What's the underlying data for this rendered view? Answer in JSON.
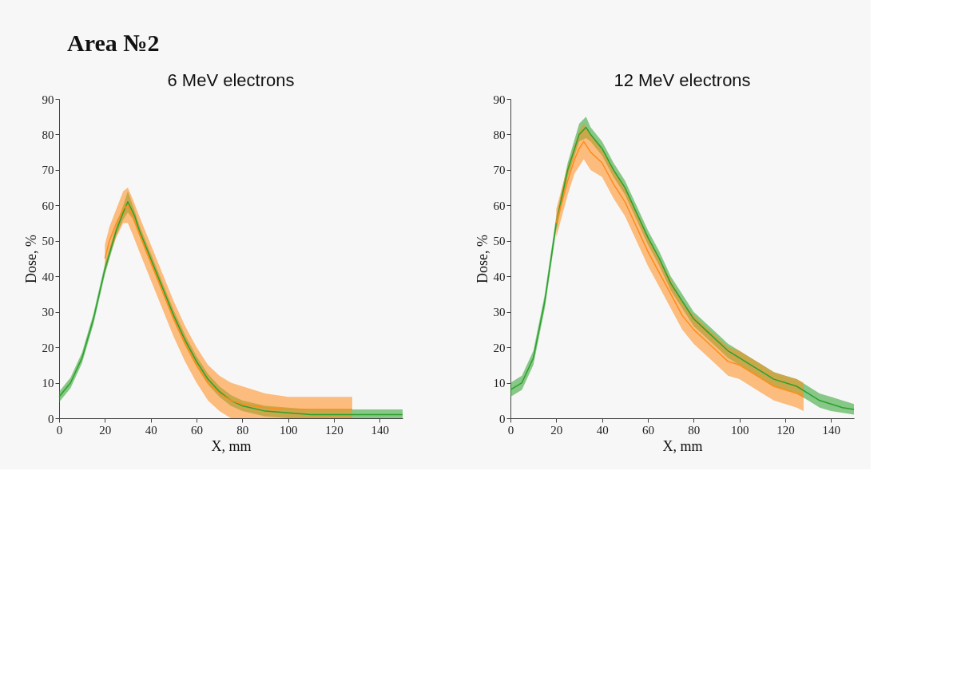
{
  "chart_data": [
    {
      "type": "line",
      "title": "6 MeV electrons",
      "xlabel": "X, mm",
      "ylabel": "Dose, %",
      "annotations": [
        "Area №2"
      ],
      "xlim": [
        0,
        150
      ],
      "xticks": [
        0,
        20,
        40,
        60,
        80,
        100,
        120,
        140
      ],
      "ylim": [
        0,
        90
      ],
      "yticks": [
        0,
        10,
        20,
        30,
        40,
        50,
        60,
        70,
        80,
        90
      ],
      "grid": false,
      "line_style": "solid",
      "series": [
        {
          "color": "#2ca02c",
          "x": [
            0,
            5,
            10,
            15,
            20,
            25,
            28,
            30,
            33,
            35,
            40,
            45,
            50,
            55,
            60,
            65,
            70,
            75,
            80,
            90,
            100,
            110,
            120,
            130,
            140,
            150
          ],
          "values": [
            6,
            10,
            17,
            28,
            42,
            53,
            58,
            61,
            57,
            53,
            45,
            37,
            29,
            22,
            16,
            11,
            7.5,
            5,
            3.5,
            2,
            1.5,
            1,
            1,
            1,
            1,
            1
          ],
          "lower": [
            4.5,
            8.5,
            15.5,
            26.5,
            40.5,
            51.5,
            56,
            58,
            55.5,
            51.5,
            43.5,
            35.5,
            27.5,
            20.5,
            14.5,
            9.5,
            6,
            3.5,
            2,
            0.5,
            0,
            0,
            0,
            0,
            0,
            0
          ],
          "upper": [
            7.5,
            11.5,
            18.5,
            29.5,
            43.5,
            54.5,
            60,
            64,
            58.5,
            54.5,
            46.5,
            38.5,
            30.5,
            23.5,
            17.5,
            12.5,
            9,
            6.5,
            5,
            3.5,
            3,
            2.5,
            2.5,
            2.5,
            2.5,
            2.5
          ]
        },
        {
          "color": "#ff8c1a",
          "x": [
            20,
            22,
            25,
            28,
            30,
            32,
            35,
            40,
            45,
            50,
            55,
            60,
            65,
            70,
            75,
            80,
            90,
            100,
            110,
            120,
            128
          ],
          "values": [
            45,
            50,
            55,
            59,
            60,
            57,
            52,
            44,
            36,
            28,
            21,
            15,
            10,
            7,
            5,
            4,
            3,
            2.5,
            2.5,
            2.5,
            2.5
          ],
          "lower": [
            41,
            46,
            51,
            55,
            55,
            52,
            47,
            39,
            31,
            23,
            16,
            10,
            5,
            2,
            0,
            0,
            0,
            0,
            0,
            0,
            0
          ],
          "upper": [
            49,
            54,
            59,
            64,
            65,
            62,
            57,
            49,
            41,
            33,
            26,
            20,
            15,
            12,
            10,
            9,
            7,
            6,
            6,
            6,
            6
          ]
        }
      ]
    },
    {
      "type": "line",
      "title": "12 MeV electrons",
      "xlabel": "X, mm",
      "ylabel": "Dose, %",
      "xlim": [
        0,
        150
      ],
      "xticks": [
        0,
        20,
        40,
        60,
        80,
        100,
        120,
        140
      ],
      "ylim": [
        0,
        90
      ],
      "yticks": [
        0,
        10,
        20,
        30,
        40,
        50,
        60,
        70,
        80,
        90
      ],
      "grid": false,
      "line_style": "solid",
      "series": [
        {
          "color": "#2ca02c",
          "x": [
            0,
            5,
            10,
            15,
            20,
            25,
            30,
            33,
            35,
            40,
            45,
            50,
            55,
            60,
            65,
            70,
            75,
            80,
            85,
            90,
            95,
            100,
            105,
            110,
            115,
            120,
            125,
            130,
            135,
            140,
            145,
            150
          ],
          "values": [
            8,
            10,
            17,
            33,
            55,
            70,
            80,
            82,
            80,
            76,
            70,
            65,
            58,
            51,
            45,
            38,
            33,
            28,
            25,
            22,
            19,
            17,
            15,
            13,
            11,
            10,
            9,
            7,
            5,
            4,
            3,
            2.5
          ],
          "lower": [
            6,
            8,
            15,
            31,
            53,
            68,
            78,
            79,
            78,
            74,
            68,
            63,
            56,
            49,
            43,
            36,
            31,
            26,
            23,
            20,
            17,
            15,
            13,
            11,
            9,
            8,
            7,
            5,
            3,
            2,
            1.5,
            1
          ],
          "upper": [
            10,
            12,
            19,
            35,
            57,
            72,
            83,
            85,
            82,
            78,
            72,
            67,
            60,
            53,
            47,
            40,
            35,
            30,
            27,
            24,
            21,
            19,
            17,
            15,
            13,
            12,
            11,
            9,
            7,
            6,
            5,
            4
          ]
        },
        {
          "color": "#ff8c1a",
          "x": [
            20,
            25,
            28,
            30,
            32,
            35,
            40,
            45,
            50,
            55,
            60,
            65,
            70,
            75,
            80,
            85,
            90,
            95,
            100,
            105,
            110,
            115,
            120,
            125,
            128
          ],
          "values": [
            55,
            67,
            73,
            76,
            78,
            75,
            72,
            66,
            61,
            54,
            47,
            41,
            35,
            29,
            25,
            22,
            19,
            16,
            15,
            13,
            11,
            9,
            8,
            7,
            6
          ],
          "lower": [
            51,
            63,
            69,
            71,
            73,
            70,
            68,
            62,
            57,
            50,
            43,
            37,
            31,
            25,
            21,
            18,
            15,
            12,
            11,
            9,
            7,
            5,
            4,
            3,
            2
          ],
          "upper": [
            59,
            71,
            77,
            81,
            83,
            80,
            76,
            70,
            65,
            58,
            51,
            45,
            39,
            33,
            29,
            26,
            23,
            20,
            19,
            17,
            15,
            13,
            12,
            11,
            10
          ]
        }
      ]
    }
  ]
}
